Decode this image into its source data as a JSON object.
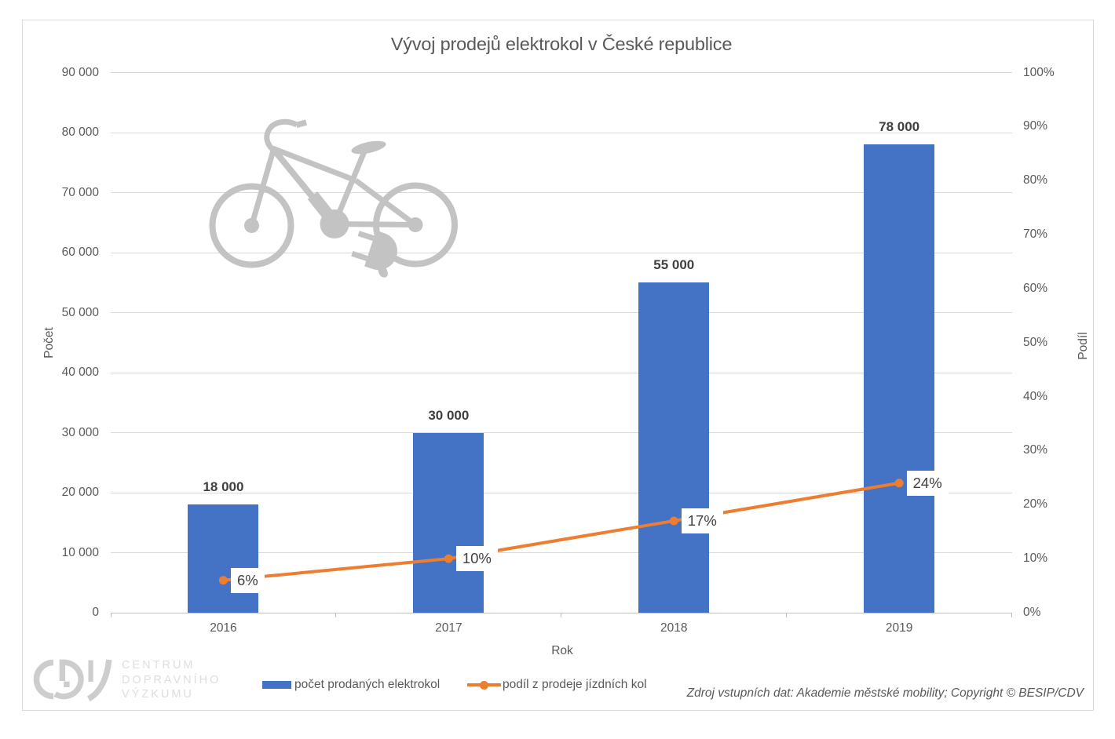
{
  "chart": {
    "title": "Vývoj prodejů elektrokol v České republice",
    "source_note": "Zdroj vstupních dat: Akademie městské mobility; Copyright © BESIP/CDV",
    "logo": {
      "mark": "CDV",
      "lines": [
        "CENTRUM",
        "DOPRAVNÍHO",
        "VÝZKUMU"
      ]
    },
    "watermark": "electric-bicycle"
  },
  "chart_data": {
    "type": "combo",
    "title": "Vývoj prodejů elektrokol v České republice",
    "categories": [
      "2016",
      "2017",
      "2018",
      "2019"
    ],
    "series": [
      {
        "name": "počet prodaných elektrokol",
        "type": "bar",
        "axis": "left",
        "color": "#4472C4",
        "values": [
          18000,
          30000,
          55000,
          78000
        ],
        "labels": [
          "18 000",
          "30 000",
          "55 000",
          "78 000"
        ]
      },
      {
        "name": "podíl z prodeje jízdních kol",
        "type": "line",
        "axis": "right",
        "color": "#ED7D31",
        "values": [
          6,
          10,
          17,
          24
        ],
        "labels": [
          "6%",
          "10%",
          "17%",
          "24%"
        ]
      }
    ],
    "x_axis": {
      "title": "Rok",
      "labels": [
        "2016",
        "2017",
        "2018",
        "2019"
      ]
    },
    "left_axis": {
      "title": "Počet",
      "min": 0,
      "max": 90000,
      "step": 10000,
      "ticks": [
        "0",
        "10 000",
        "20 000",
        "30 000",
        "40 000",
        "50 000",
        "60 000",
        "70 000",
        "80 000",
        "90 000"
      ]
    },
    "right_axis": {
      "title": "Podíl",
      "min": 0,
      "max": 100,
      "step": 10,
      "ticks": [
        "0%",
        "10%",
        "20%",
        "30%",
        "40%",
        "50%",
        "60%",
        "70%",
        "80%",
        "90%",
        "100%"
      ]
    },
    "legend_position": "bottom",
    "grid": true
  },
  "colors": {
    "bar": "#4472C4",
    "line": "#ED7D31",
    "gridline": "#D9D9D9",
    "axis_line": "#BFBFBF",
    "text": "#595959",
    "data_label": "#3F3F3F",
    "border": "#D9D9D9",
    "watermark": "#C3C3C3",
    "logo_mark": "#CDCDCD",
    "logo_text": "#DEDEDE"
  }
}
